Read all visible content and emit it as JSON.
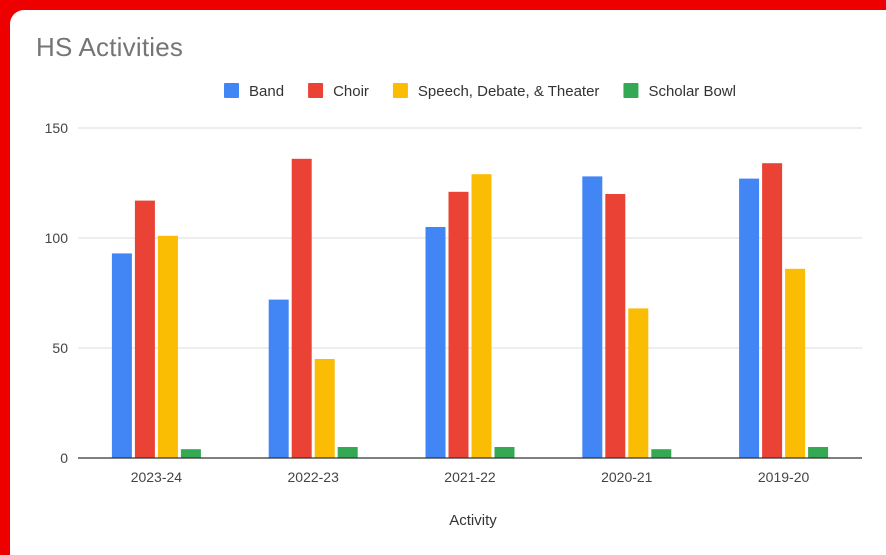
{
  "colors": {
    "frame": "#ee0000",
    "background": "#ffffff",
    "grid": "#dddddd",
    "baseline": "#333333",
    "title": "#757575"
  },
  "chart_data": {
    "type": "bar",
    "title": "HS Activities",
    "xlabel": "Activity",
    "ylabel": "",
    "ylim": [
      0,
      150
    ],
    "yticks": [
      0,
      50,
      100,
      150
    ],
    "grid": true,
    "legend_position": "top",
    "categories": [
      "2023-24",
      "2022-23",
      "2021-22",
      "2020-21",
      "2019-20"
    ],
    "series": [
      {
        "name": "Band",
        "color": "#4285f4",
        "values": [
          93,
          72,
          105,
          128,
          127
        ]
      },
      {
        "name": "Choir",
        "color": "#ea4335",
        "values": [
          117,
          136,
          121,
          120,
          134
        ]
      },
      {
        "name": "Speech, Debate, & Theater",
        "color": "#fbbc04",
        "values": [
          101,
          45,
          129,
          68,
          86
        ]
      },
      {
        "name": "Scholar Bowl",
        "color": "#34a853",
        "values": [
          4,
          5,
          5,
          4,
          5
        ]
      }
    ]
  }
}
